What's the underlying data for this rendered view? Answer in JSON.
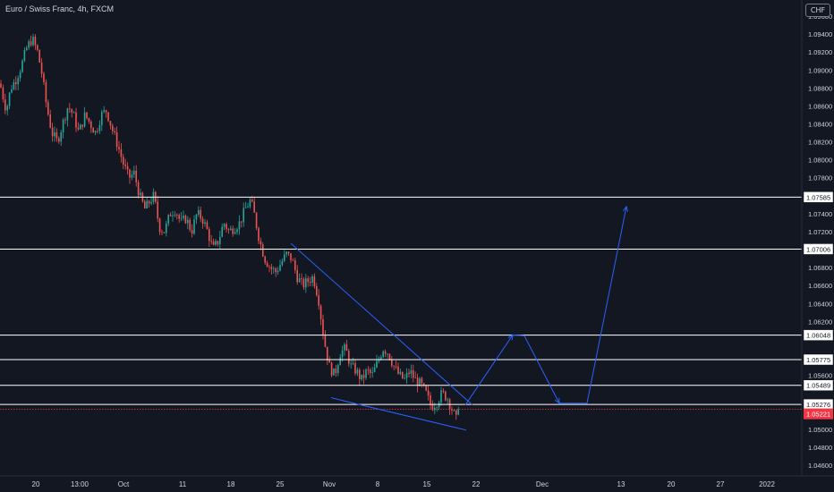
{
  "title": "Euro / Swiss Franc, 4h, FXCM",
  "currency_badge": "CHF",
  "colors": {
    "background": "#131722",
    "bull": "#26a69a",
    "bear": "#ef5350",
    "level": "#ffffff",
    "drawing": "#2962ff",
    "text": "#d1d4dc",
    "current_price": "#f23645"
  },
  "chart_data": {
    "type": "candlestick",
    "title": "Euro / Swiss Franc, 4h, FXCM",
    "x_tick_labels": [
      "20",
      "13:00",
      "Oct",
      "11",
      "18",
      "25",
      "Nov",
      "8",
      "15",
      "22",
      "Dec",
      "13",
      "20",
      "27",
      "2022"
    ],
    "y_axis_labels": [
      "1.09600",
      "1.09400",
      "1.09200",
      "1.09000",
      "1.08800",
      "1.08600",
      "1.08400",
      "1.08200",
      "1.08000",
      "1.07800",
      "1.07400",
      "1.07200",
      "1.06800",
      "1.06600",
      "1.06400",
      "1.06200",
      "1.05600",
      "1.05000",
      "1.04800",
      "1.04600"
    ],
    "ylim": [
      1.0448,
      1.0978
    ],
    "horizontal_levels": [
      {
        "label": "1.07585",
        "value": 1.07585
      },
      {
        "label": "1.07006",
        "value": 1.07006
      },
      {
        "label": "1.06048",
        "value": 1.06048
      },
      {
        "label": "1.05775",
        "value": 1.05775
      },
      {
        "label": "1.05489",
        "value": 1.05489
      },
      {
        "label": "1.05276",
        "value": 1.05276
      }
    ],
    "current_price": {
      "label": "1.05221",
      "value": 1.05221
    },
    "price_path": [
      [
        0,
        1.0885
      ],
      [
        7,
        1.0855
      ],
      [
        12,
        1.088
      ],
      [
        18,
        1.089
      ],
      [
        24,
        1.0905
      ],
      [
        30,
        1.0925
      ],
      [
        36,
        1.0935
      ],
      [
        42,
        1.092
      ],
      [
        47,
        1.0895
      ],
      [
        52,
        1.086
      ],
      [
        58,
        1.083
      ],
      [
        64,
        1.082
      ],
      [
        70,
        1.084
      ],
      [
        76,
        1.086
      ],
      [
        82,
        1.085
      ],
      [
        88,
        1.083
      ],
      [
        95,
        1.085
      ],
      [
        101,
        1.084
      ],
      [
        107,
        1.083
      ],
      [
        113,
        1.085
      ],
      [
        119,
        1.0855
      ],
      [
        125,
        1.0835
      ],
      [
        132,
        1.0815
      ],
      [
        138,
        1.0795
      ],
      [
        144,
        1.078
      ],
      [
        150,
        1.0785
      ],
      [
        156,
        1.076
      ],
      [
        162,
        1.0745
      ],
      [
        168,
        1.0755
      ],
      [
        172,
        1.076
      ],
      [
        178,
        1.0725
      ],
      [
        184,
        1.072
      ],
      [
        190,
        1.074
      ],
      [
        196,
        1.0745
      ],
      [
        202,
        1.073
      ],
      [
        208,
        1.0735
      ],
      [
        214,
        1.072
      ],
      [
        220,
        1.074
      ],
      [
        226,
        1.0735
      ],
      [
        232,
        1.072
      ],
      [
        238,
        1.07
      ],
      [
        244,
        1.071
      ],
      [
        250,
        1.073
      ],
      [
        256,
        1.072
      ],
      [
        262,
        1.0725
      ],
      [
        268,
        1.073
      ],
      [
        274,
        1.0745
      ],
      [
        280,
        1.0755
      ],
      [
        284,
        1.074
      ],
      [
        290,
        1.071
      ],
      [
        296,
        1.069
      ],
      [
        302,
        1.068
      ],
      [
        308,
        1.0675
      ],
      [
        314,
        1.0685
      ],
      [
        320,
        1.0695
      ],
      [
        326,
        1.069
      ],
      [
        332,
        1.067
      ],
      [
        338,
        1.066
      ],
      [
        344,
        1.0665
      ],
      [
        350,
        1.067
      ],
      [
        356,
        1.0645
      ],
      [
        362,
        1.06
      ],
      [
        368,
        1.057
      ],
      [
        374,
        1.056
      ],
      [
        380,
        1.0585
      ],
      [
        386,
        1.059
      ],
      [
        392,
        1.057
      ],
      [
        398,
        1.0565
      ],
      [
        404,
        1.0555
      ],
      [
        410,
        1.0565
      ],
      [
        416,
        1.056
      ],
      [
        422,
        1.0575
      ],
      [
        428,
        1.059
      ],
      [
        434,
        1.0585
      ],
      [
        440,
        1.057
      ],
      [
        446,
        1.056
      ],
      [
        452,
        1.0555
      ],
      [
        458,
        1.0565
      ],
      [
        464,
        1.0555
      ],
      [
        470,
        1.055
      ],
      [
        476,
        1.054
      ],
      [
        482,
        1.0525
      ],
      [
        488,
        1.053
      ],
      [
        494,
        1.054
      ],
      [
        500,
        1.0535
      ],
      [
        506,
        1.052
      ],
      [
        510,
        1.051
      ],
      [
        514,
        1.0522
      ]
    ],
    "drawings": {
      "upper_trendline": [
        [
          325,
          1.0707
        ],
        [
          528,
          1.0527
        ]
      ],
      "lower_trendline": [
        [
          370,
          1.0535
        ],
        [
          521,
          1.0499
        ]
      ],
      "projection_path": [
        [
          520,
          1.0527
        ],
        [
          573,
          1.0605
        ],
        [
          586,
          1.0604
        ],
        [
          625,
          1.0529
        ],
        [
          656,
          1.0529
        ],
        [
          700,
          1.0748
        ]
      ]
    },
    "grid": false
  }
}
